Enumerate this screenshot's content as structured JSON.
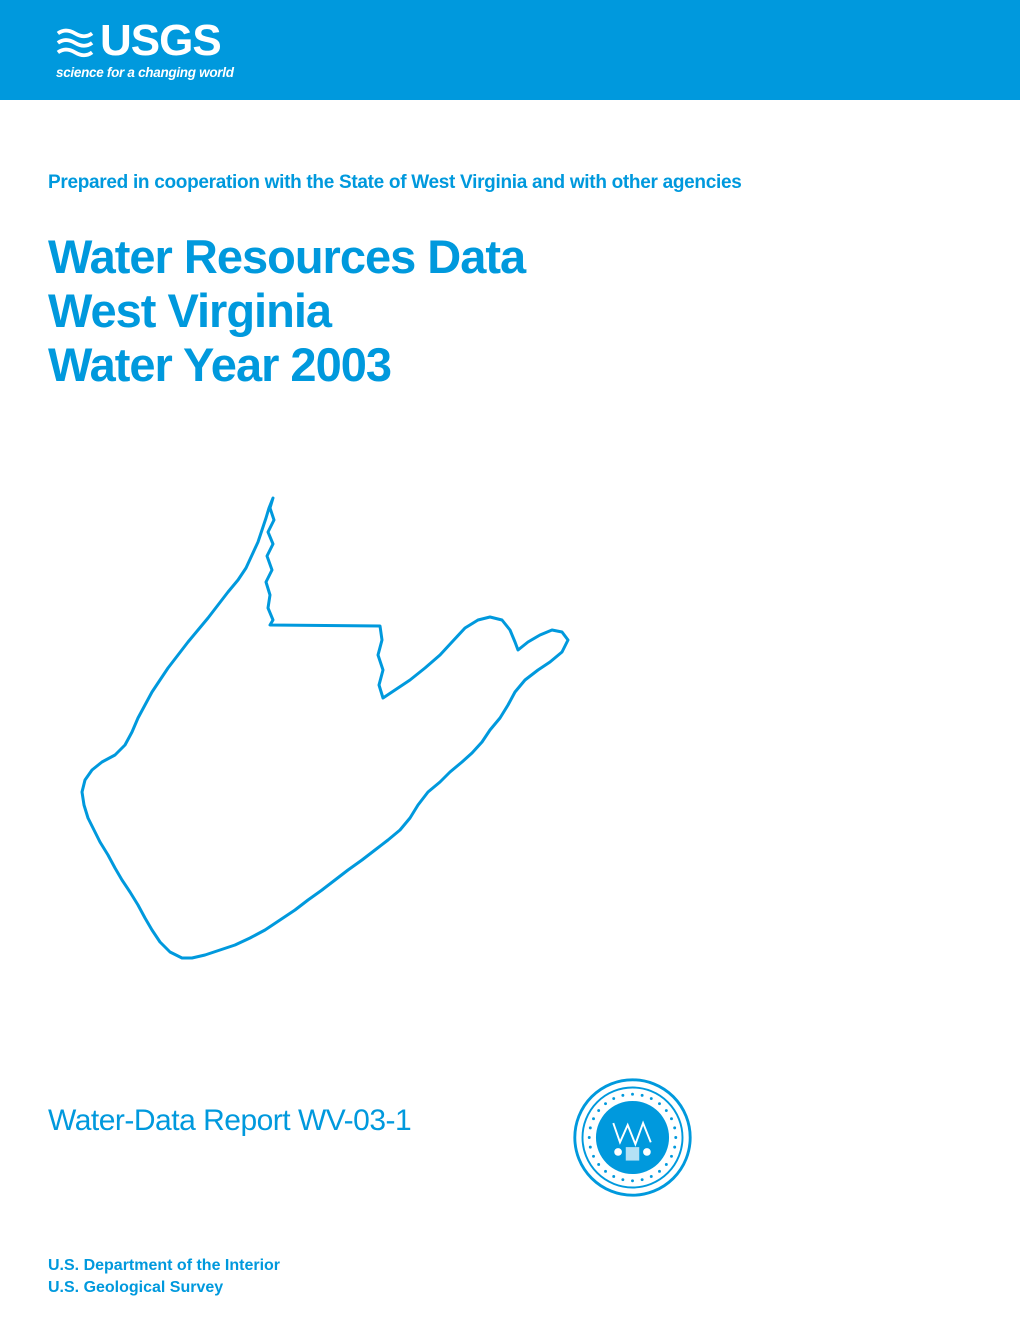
{
  "colors": {
    "primary": "#0099dd",
    "white": "#ffffff",
    "black": "#000000"
  },
  "header": {
    "logo_text": "USGS",
    "tagline": "science for a changing world"
  },
  "cooperation": "Prepared in cooperation with the State of West Virginia and with other agencies",
  "title": {
    "line1": "Water Resources Data",
    "line2": "West Virginia",
    "line3": "Water Year 2003"
  },
  "map": {
    "region": "West Virginia",
    "outline_color": "#0099dd",
    "outline_width": "3"
  },
  "report_number": "Water-Data Report WV-03-1",
  "seal": {
    "label": "State of West Virginia Seal",
    "color": "#0099dd"
  },
  "footer": {
    "line1": "U.S. Department of the Interior",
    "line2": "U.S. Geological Survey"
  }
}
